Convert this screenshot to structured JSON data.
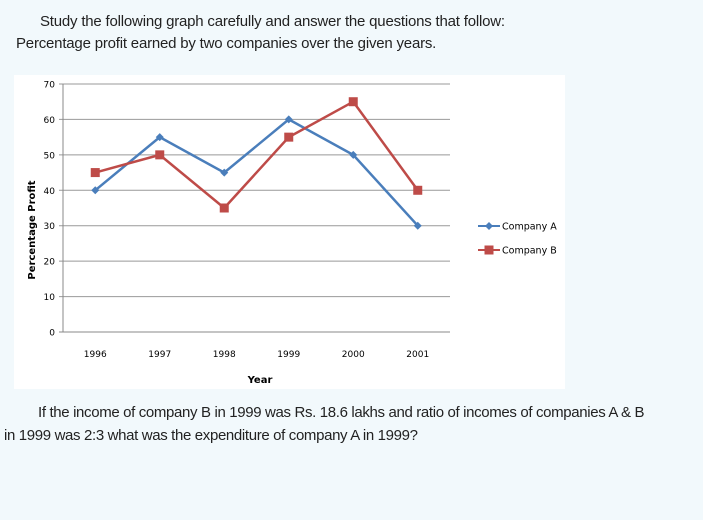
{
  "intro": {
    "line1": "Study the following graph carefully and answer the questions that follow:",
    "line2": "Percentage profit earned by two companies over the given years."
  },
  "question": {
    "line1": "If the income of company B in 1999 was Rs. 18.6 lakhs and ratio of incomes of companies A & B",
    "line2": "in 1999 was 2:3 what was the expenditure of company A in 1999?"
  },
  "chart_data": {
    "type": "line",
    "title": "",
    "xlabel": "Year",
    "ylabel": "Percentage Profit",
    "categories": [
      "1996",
      "1997",
      "1998",
      "1999",
      "2000",
      "2001"
    ],
    "ylim": [
      0,
      70
    ],
    "yticks": [
      0,
      10,
      20,
      30,
      40,
      50,
      60,
      70
    ],
    "grid": true,
    "legend": "right",
    "series": [
      {
        "name": "Company A",
        "values": [
          40,
          55,
          45,
          60,
          50,
          30
        ],
        "color": "#4a7ebb",
        "marker": "diamond"
      },
      {
        "name": "Company B",
        "values": [
          45,
          50,
          35,
          55,
          65,
          40
        ],
        "color": "#be4b48",
        "marker": "square"
      }
    ]
  }
}
